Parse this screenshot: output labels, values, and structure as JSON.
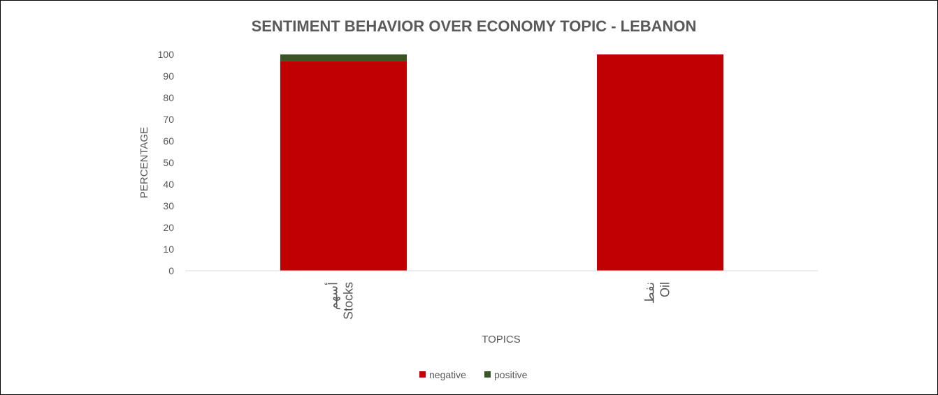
{
  "chart_data": {
    "type": "bar",
    "stacked": true,
    "title": "SENTIMENT BEHAVIOR OVER ECONOMY  TOPIC - LEBANON",
    "xlabel": "TOPICS",
    "ylabel": "PERCENTAGE",
    "ylim": [
      0,
      100
    ],
    "yticks": [
      0,
      10,
      20,
      30,
      40,
      50,
      60,
      70,
      80,
      90,
      100
    ],
    "categories": [
      {
        "arabic": "أسهم",
        "english": "Stocks"
      },
      {
        "arabic": "نفط",
        "english": "Oil"
      }
    ],
    "series": [
      {
        "name": "negative",
        "color": "#c00000",
        "values": [
          97,
          100
        ]
      },
      {
        "name": "positive",
        "color": "#375623",
        "values": [
          3,
          0
        ]
      }
    ],
    "grid": false,
    "legend_position": "bottom"
  }
}
